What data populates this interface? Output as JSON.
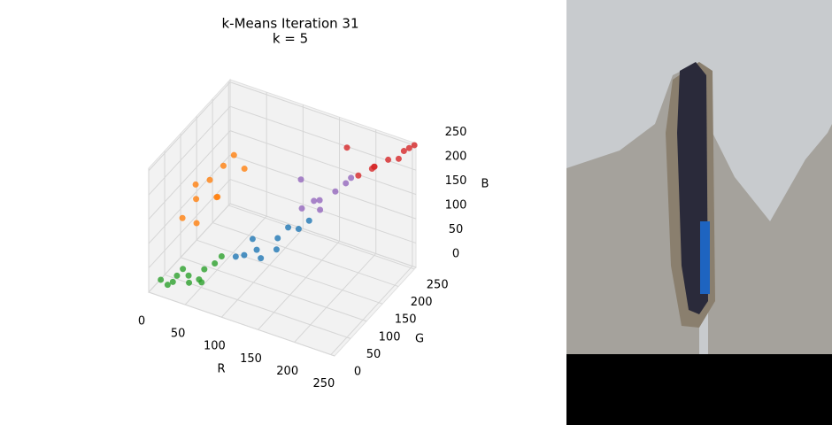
{
  "chart_data": {
    "type": "scatter3d",
    "title": "k-Means Iteration 31",
    "subtitle": "k = 5",
    "xlabel": "R",
    "ylabel": "G",
    "zlabel": "B",
    "xlim": [
      0,
      255
    ],
    "ylim": [
      0,
      255
    ],
    "zlim": [
      0,
      255
    ],
    "xticks": [
      0,
      50,
      100,
      150,
      200,
      250
    ],
    "yticks": [
      0,
      50,
      100,
      150,
      200,
      250
    ],
    "zticks": [
      0,
      50,
      100,
      150,
      200,
      250
    ],
    "grid": true,
    "series": [
      {
        "color": "#2ca02c",
        "x": [
          20,
          35,
          50,
          15,
          40,
          60,
          25,
          45,
          30,
          55,
          10,
          65
        ],
        "y": [
          30,
          45,
          60,
          25,
          35,
          70,
          50,
          55,
          20,
          40,
          15,
          80
        ],
        "z": [
          10,
          20,
          30,
          5,
          15,
          40,
          25,
          10,
          35,
          20,
          20,
          50
        ]
      },
      {
        "color": "#1f77b4",
        "x": [
          80,
          100,
          120,
          140,
          90,
          110,
          130,
          150,
          85,
          125
        ],
        "y": [
          90,
          110,
          130,
          150,
          120,
          100,
          140,
          160,
          105,
          115
        ],
        "z": [
          50,
          60,
          80,
          95,
          70,
          55,
          100,
          110,
          45,
          70
        ]
      },
      {
        "color": "#ff7f0e",
        "x": [
          20,
          30,
          40,
          50,
          25,
          60,
          35,
          45,
          55,
          70
        ],
        "y": [
          60,
          80,
          100,
          120,
          90,
          130,
          70,
          110,
          90,
          140
        ],
        "z": [
          120,
          150,
          180,
          200,
          170,
          220,
          110,
          140,
          160,
          190
        ]
      },
      {
        "color": "#9467bd",
        "x": [
          140,
          160,
          175,
          150,
          185,
          130,
          165,
          190
        ],
        "y": [
          160,
          170,
          185,
          175,
          195,
          180,
          160,
          200
        ],
        "z": [
          130,
          150,
          165,
          140,
          180,
          170,
          140,
          190
        ]
      },
      {
        "color": "#d62728",
        "x": [
          200,
          215,
          230,
          245,
          255,
          220,
          240,
          210,
          250,
          180
        ],
        "y": [
          200,
          215,
          225,
          240,
          250,
          205,
          235,
          220,
          245,
          210
        ],
        "z": [
          200,
          215,
          230,
          245,
          255,
          225,
          230,
          205,
          250,
          240
        ]
      }
    ]
  }
}
